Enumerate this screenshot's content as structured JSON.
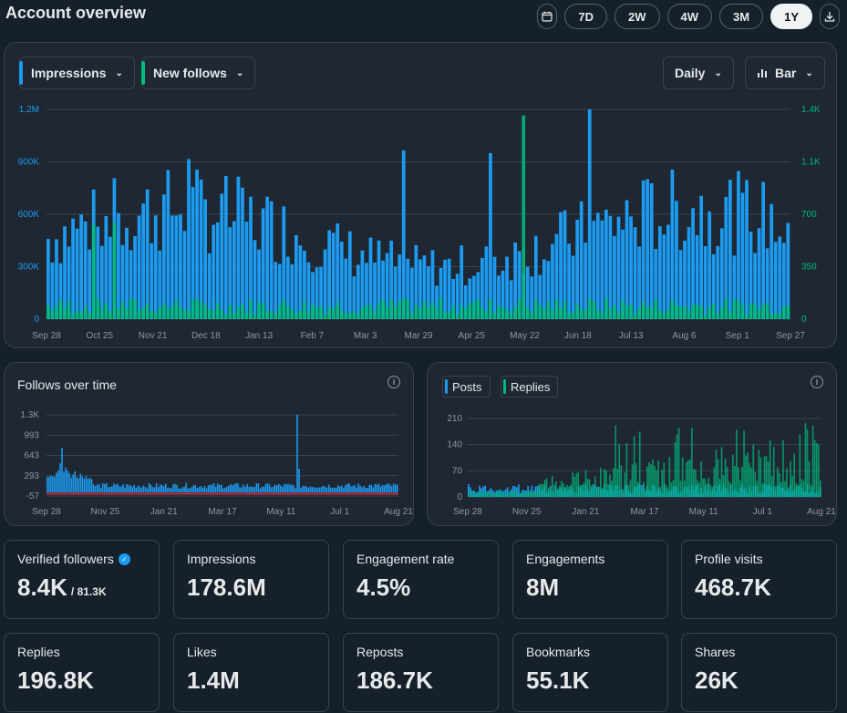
{
  "header": {
    "title": "Account overview"
  },
  "range": {
    "options": [
      "7D",
      "2W",
      "4W",
      "3M",
      "1Y"
    ],
    "active": "1Y"
  },
  "main_chart": {
    "metric1": "Impressions",
    "metric2": "New follows",
    "interval": "Daily",
    "chart_type": "Bar"
  },
  "follows_chart": {
    "title": "Follows over time"
  },
  "posts_chart": {
    "legend1": "Posts",
    "legend2": "Replies"
  },
  "colors": {
    "blue": "#1d9bf0",
    "green": "#00ba7c",
    "red": "#f4212e"
  },
  "chart_data": [
    {
      "type": "bar",
      "title": "Impressions / New follows",
      "x_tick_labels": [
        "Sep 28",
        "Oct 25",
        "Nov 21",
        "Dec 18",
        "Jan 13",
        "Feb 7",
        "Mar 3",
        "Mar 29",
        "Apr 25",
        "May 22",
        "Jun 18",
        "Jul 13",
        "Aug 6",
        "Sep 1",
        "Sep 27"
      ],
      "y_left_ticks": [
        "0",
        "300K",
        "600K",
        "900K",
        "1.2M"
      ],
      "y_left_range": [
        0,
        1200000
      ],
      "y_right_ticks": [
        "0",
        "350",
        "700",
        "1.1K",
        "1.4K"
      ],
      "y_right_range": [
        0,
        1400
      ],
      "series": [
        {
          "name": "Impressions",
          "axis": "left",
          "color": "#1d9bf0",
          "peak_value": 1200000,
          "typical_value": 500000
        },
        {
          "name": "New follows",
          "axis": "right",
          "color": "#00ba7c",
          "peak_value": 1360,
          "typical_value": 80
        }
      ]
    },
    {
      "type": "bar",
      "title": "Follows over time",
      "x_tick_labels": [
        "Sep 28",
        "Nov 25",
        "Jan 21",
        "Mar 17",
        "May 11",
        "Jul 1",
        "Aug 21"
      ],
      "y_ticks": [
        "-57",
        "293",
        "643",
        "993",
        "1.3K"
      ],
      "y_range": [
        -57,
        1300
      ],
      "series": [
        {
          "name": "Follows",
          "color": "#1d9bf0",
          "peak_value": 1300
        },
        {
          "name": "Unfollows",
          "color": "#f4212e"
        }
      ]
    },
    {
      "type": "bar",
      "title": "Posts / Replies",
      "x_tick_labels": [
        "Sep 28",
        "Nov 25",
        "Jan 21",
        "Mar 17",
        "May 11",
        "Jul 1",
        "Aug 21"
      ],
      "y_ticks": [
        "0",
        "70",
        "140",
        "210"
      ],
      "y_range": [
        0,
        210
      ],
      "series": [
        {
          "name": "Posts",
          "color": "#1d9bf0"
        },
        {
          "name": "Replies",
          "color": "#00ba7c",
          "peak_value": 200
        }
      ]
    }
  ],
  "metrics": [
    {
      "label": "Verified followers",
      "value": "8.4K",
      "sub": "/ 81.3K",
      "verified": true
    },
    {
      "label": "Impressions",
      "value": "178.6M"
    },
    {
      "label": "Engagement rate",
      "value": "4.5%"
    },
    {
      "label": "Engagements",
      "value": "8M"
    },
    {
      "label": "Profile visits",
      "value": "468.7K"
    },
    {
      "label": "Replies",
      "value": "196.8K"
    },
    {
      "label": "Likes",
      "value": "1.4M"
    },
    {
      "label": "Reposts",
      "value": "186.7K"
    },
    {
      "label": "Bookmarks",
      "value": "55.1K"
    },
    {
      "label": "Shares",
      "value": "26K"
    }
  ]
}
